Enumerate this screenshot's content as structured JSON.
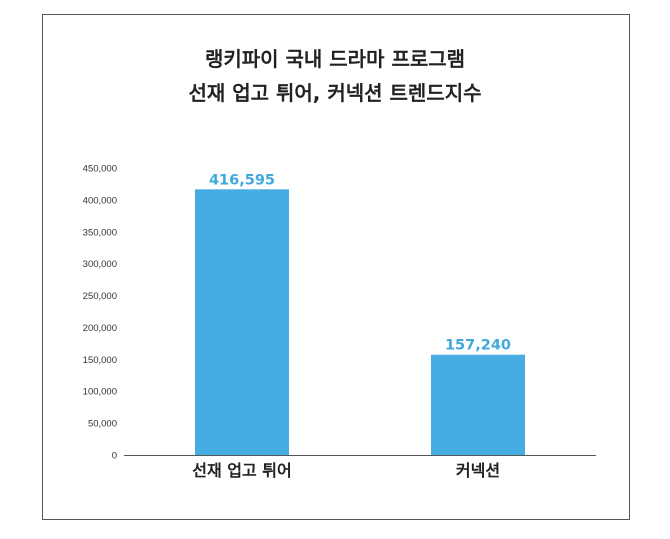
{
  "chart_data": {
    "type": "bar",
    "title": "랭키파이 국내 드라마 프로그램",
    "subtitle": "선재 업고 튀어, 커넥션 트렌드지수",
    "categories": [
      "선재 업고 튀어",
      "커넥션"
    ],
    "values": [
      416595,
      157240
    ],
    "data_labels": [
      "416,595",
      "157,240"
    ],
    "ylim": [
      0,
      450000
    ],
    "yticks": [
      0,
      50000,
      100000,
      150000,
      200000,
      250000,
      300000,
      350000,
      400000,
      450000
    ],
    "ytick_labels": [
      "0",
      "50,000",
      "100,000",
      "150,000",
      "200,000",
      "250,000",
      "300,000",
      "350,000",
      "400,000",
      "450,000"
    ],
    "xlabel": "",
    "ylabel": "",
    "grid": false,
    "legend": "none",
    "colors": {
      "bar": "#45ADE2",
      "data_label": "#3FA9DD",
      "axis": "#555555"
    }
  }
}
